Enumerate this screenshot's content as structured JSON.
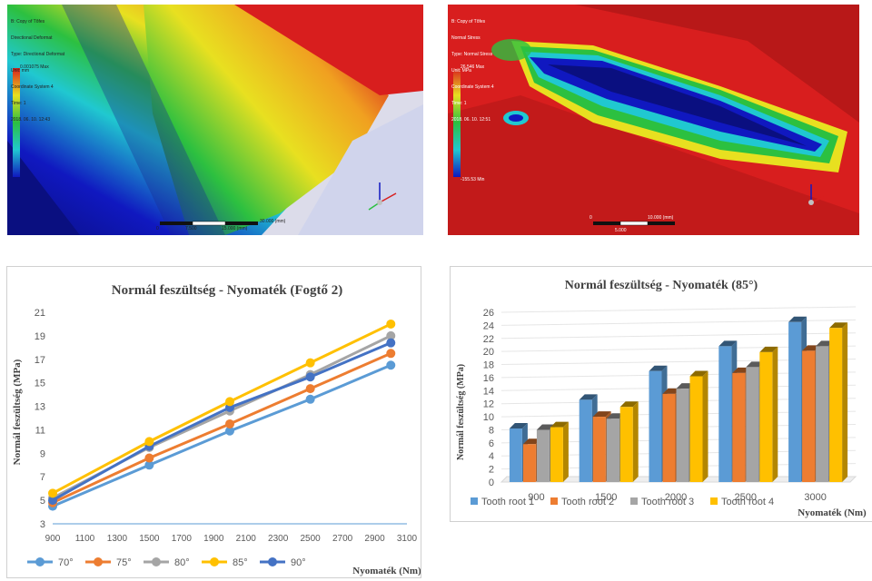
{
  "fea_images": {
    "left": {
      "info_lines": [
        "B: Copy of Tõfes",
        "Directional Deformat",
        "Type: Directional Deformat",
        "Unit: mm",
        "Coordinate System 4",
        "Time: 1",
        "2018. 06. 10. 12:43"
      ],
      "max_label": "0.001075 Max",
      "scale_ticks": [
        "0",
        "7.500",
        "15.000 (mm)",
        "30.000 (mm)"
      ]
    },
    "right": {
      "info_lines": [
        "B: Copy of Tõfes",
        "Normal Stress",
        "Type: Normal Stress",
        "Unit: MPa",
        "Coordinate System 4",
        "Time: 1",
        "2018. 06. 10. 12:51"
      ],
      "max_label": "26.546 Max",
      "min_label": "-155.53 Min",
      "scale_ticks": [
        "0",
        "5.000",
        "10.000 (mm)"
      ]
    },
    "colors": {
      "red": "#d81e1e",
      "darkred": "#9c1212",
      "yellow": "#e8e020",
      "green": "#2cc040",
      "cyan": "#20c8d0",
      "blue": "#1018c0",
      "navy": "#0a0f80"
    }
  },
  "chart_data": [
    {
      "type": "line",
      "title": "Normál feszültség - Nyomaték (Fogtő 2)",
      "xlabel": "Nyomaték (Nm)",
      "ylabel": "Normál feszültség (MPa)",
      "x": [
        900,
        1500,
        2000,
        2500,
        3000
      ],
      "xlim": [
        900,
        3100
      ],
      "xticks": [
        900,
        1100,
        1300,
        1500,
        1700,
        1900,
        2100,
        2300,
        2500,
        2700,
        2900,
        3100
      ],
      "ylim": [
        3,
        21
      ],
      "yticks": [
        3,
        5,
        7,
        9,
        11,
        13,
        15,
        17,
        19,
        21
      ],
      "grid": false,
      "legend": "bottom",
      "series": [
        {
          "name": "70°",
          "color": "#5b9bd5",
          "values": [
            4.5,
            8.0,
            10.9,
            13.6,
            16.5
          ]
        },
        {
          "name": "75°",
          "color": "#ed7d31",
          "values": [
            4.8,
            8.6,
            11.5,
            14.5,
            17.5
          ]
        },
        {
          "name": "80°",
          "color": "#a5a5a5",
          "values": [
            5.2,
            9.5,
            12.6,
            15.7,
            19.0
          ]
        },
        {
          "name": "85°",
          "color": "#ffc000",
          "values": [
            5.6,
            10.0,
            13.4,
            16.7,
            20.0
          ]
        },
        {
          "name": "90°",
          "color": "#4472c4",
          "values": [
            5.0,
            9.6,
            12.9,
            15.5,
            18.4
          ]
        }
      ]
    },
    {
      "type": "bar",
      "title": "Normál feszültség - Nyomaték (85°)",
      "xlabel": "Nyomaték (Nm)",
      "ylabel": "Normál feszültség (MPa)",
      "categories": [
        "900",
        "1500",
        "2000",
        "2500",
        "3000"
      ],
      "ylim": [
        0,
        26
      ],
      "yticks": [
        0,
        2,
        4,
        6,
        8,
        10,
        12,
        14,
        16,
        18,
        20,
        22,
        24,
        26
      ],
      "grid": true,
      "legend": "bottom",
      "series": [
        {
          "name": "Tooth root 1",
          "color": "#5b9bd5",
          "values": [
            8.2,
            12.6,
            17.0,
            20.8,
            24.5
          ]
        },
        {
          "name": "Tooth root 2",
          "color": "#ed7d31",
          "values": [
            5.8,
            10.0,
            13.5,
            16.7,
            20.1
          ]
        },
        {
          "name": "Tooth root 3",
          "color": "#a5a5a5",
          "values": [
            8.0,
            9.7,
            14.3,
            17.6,
            20.8
          ]
        },
        {
          "name": "Tooth root 4",
          "color": "#ffc000",
          "values": [
            8.4,
            11.5,
            16.2,
            19.9,
            23.6
          ]
        }
      ]
    }
  ]
}
